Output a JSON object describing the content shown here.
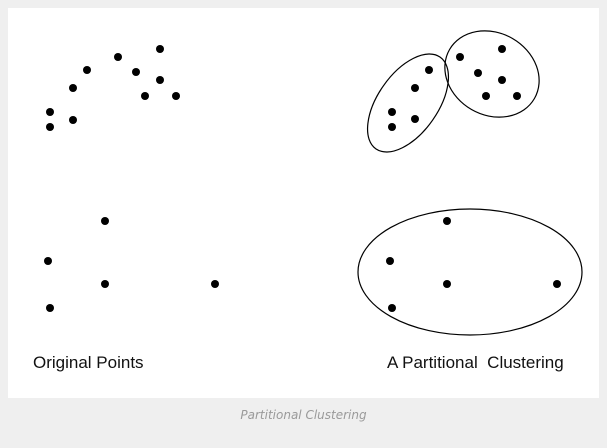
{
  "figure": {
    "left_panel_label": "Original Points",
    "right_panel_label": "A Partitional  Clustering",
    "caption": "Partitional Clustering"
  },
  "colors": {
    "point": "#000000",
    "outline": "#000000",
    "frame": "#ffffff",
    "background": "#efefef",
    "caption": "#9a9a9a"
  }
}
